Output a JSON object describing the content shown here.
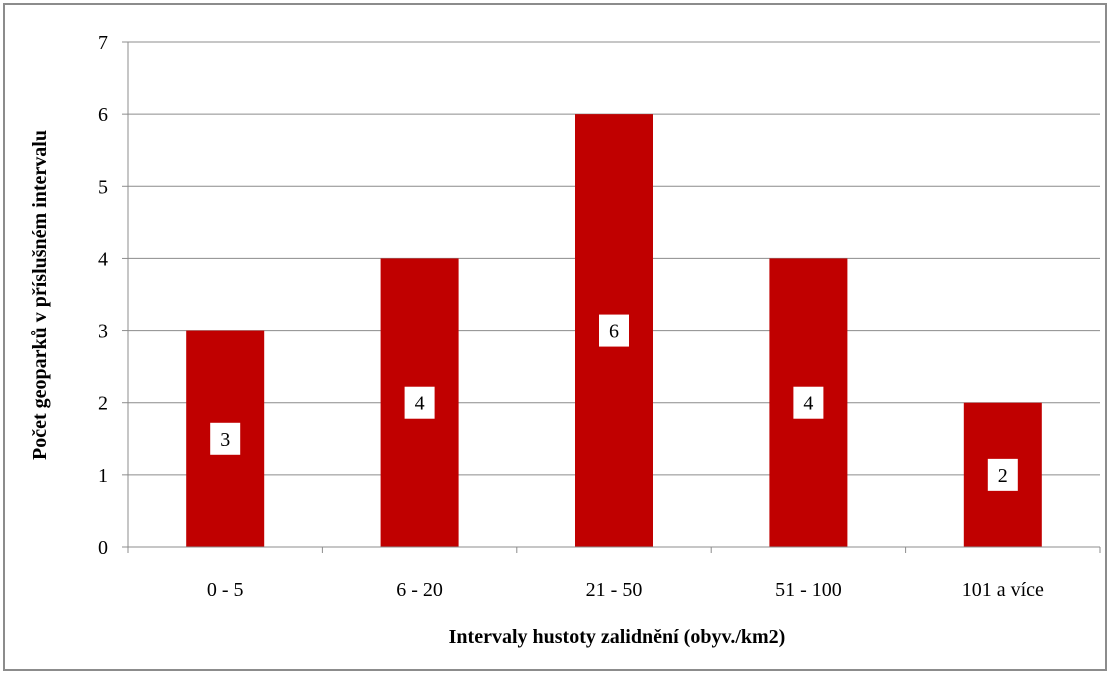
{
  "chart_data": {
    "type": "bar",
    "categories": [
      "0 - 5",
      "6 - 20",
      "21 - 50",
      "51 - 100",
      "101 a více"
    ],
    "values": [
      3,
      4,
      6,
      4,
      2
    ],
    "title": "",
    "xlabel": "Intervaly hustoty zalidnění (obyv./km2)",
    "ylabel": "Počet geoparků v příslušném intervalu",
    "ylim": [
      0,
      7
    ],
    "yticks": [
      0,
      1,
      2,
      3,
      4,
      5,
      6,
      7
    ],
    "grid": true,
    "legend": "none",
    "bar_color": "#c00000",
    "data_labels": true
  }
}
